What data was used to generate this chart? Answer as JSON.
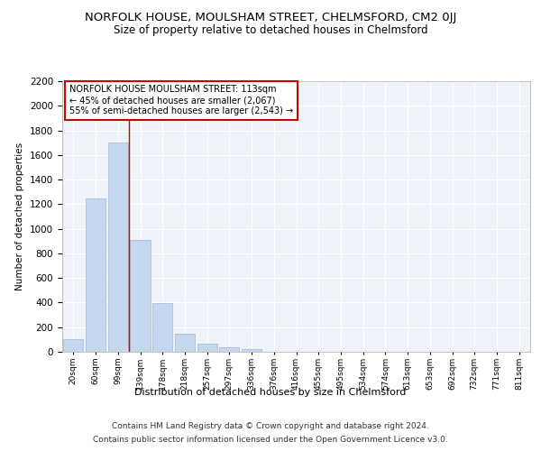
{
  "title": "NORFOLK HOUSE, MOULSHAM STREET, CHELMSFORD, CM2 0JJ",
  "subtitle": "Size of property relative to detached houses in Chelmsford",
  "xlabel": "Distribution of detached houses by size in Chelmsford",
  "ylabel": "Number of detached properties",
  "categories": [
    "20sqm",
    "60sqm",
    "99sqm",
    "139sqm",
    "178sqm",
    "218sqm",
    "257sqm",
    "297sqm",
    "336sqm",
    "376sqm",
    "416sqm",
    "455sqm",
    "495sqm",
    "534sqm",
    "574sqm",
    "613sqm",
    "653sqm",
    "692sqm",
    "732sqm",
    "771sqm",
    "811sqm"
  ],
  "values": [
    105,
    1250,
    1700,
    910,
    395,
    150,
    65,
    35,
    25,
    0,
    0,
    0,
    0,
    0,
    0,
    0,
    0,
    0,
    0,
    0,
    0
  ],
  "bar_color": "#c5d8f0",
  "bar_edge_color": "#a0b8d8",
  "vline_x": 2.5,
  "vline_color": "#cc0000",
  "annotation_text": "NORFOLK HOUSE MOULSHAM STREET: 113sqm\n← 45% of detached houses are smaller (2,067)\n55% of semi-detached houses are larger (2,543) →",
  "annotation_box_color": "#ffffff",
  "annotation_box_edge_color": "#cc0000",
  "ylim": [
    0,
    2200
  ],
  "yticks": [
    0,
    200,
    400,
    600,
    800,
    1000,
    1200,
    1400,
    1600,
    1800,
    2000,
    2200
  ],
  "bg_color": "#eef3fa",
  "footer_line1": "Contains HM Land Registry data © Crown copyright and database right 2024.",
  "footer_line2": "Contains public sector information licensed under the Open Government Licence v3.0.",
  "title_fontsize": 9.5,
  "subtitle_fontsize": 8.5,
  "annotation_fontsize": 7.0,
  "footer_fontsize": 6.5,
  "ylabel_fontsize": 7.5,
  "xlabel_fontsize": 8.0,
  "ytick_fontsize": 7.5,
  "xtick_fontsize": 6.5
}
